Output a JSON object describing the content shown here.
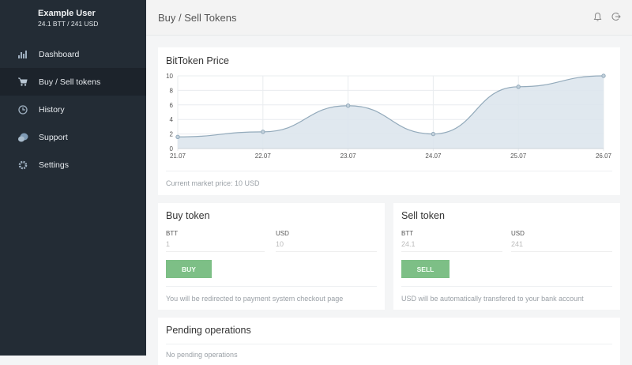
{
  "user": {
    "name": "Example User",
    "balance": "24.1 BTT / 241 USD"
  },
  "sidebar": {
    "items": [
      {
        "label": "Dashboard",
        "icon": "bar-chart-icon"
      },
      {
        "label": "Buy / Sell tokens",
        "icon": "cart-icon",
        "active": true
      },
      {
        "label": "History",
        "icon": "clock-icon"
      },
      {
        "label": "Support",
        "icon": "chat-icon"
      },
      {
        "label": "Settings",
        "icon": "gear-icon"
      }
    ]
  },
  "header": {
    "title": "Buy / Sell Tokens",
    "icons": [
      "bell-icon",
      "logout-icon"
    ]
  },
  "price_card": {
    "title": "BitToken Price",
    "footer": "Current market price: 10 USD"
  },
  "buy": {
    "title": "Buy token",
    "btt_label": "BTT",
    "usd_label": "USD",
    "btt_value": "1",
    "usd_value": "10",
    "button": "BUY",
    "note": "You will be redirected to payment system checkout page"
  },
  "sell": {
    "title": "Sell token",
    "btt_label": "BTT",
    "usd_label": "USD",
    "btt_value": "24.1",
    "usd_value": "241",
    "button": "SELL",
    "note": "USD will be automatically transfered to your bank account"
  },
  "pending": {
    "title": "Pending operations",
    "empty": "No pending operations"
  },
  "colors": {
    "sidebar": "#232c35",
    "accent_green": "#7dbf86",
    "chart_fill": "#dde6ed",
    "chart_line": "#93aabb"
  },
  "chart_data": {
    "type": "area",
    "title": "BitToken Price",
    "categories": [
      "21.07",
      "22.07",
      "23.07",
      "24.07",
      "25.07",
      "26.07"
    ],
    "values": [
      1.6,
      2.3,
      5.9,
      2.0,
      8.5,
      10
    ],
    "yticks": [
      0,
      2,
      4,
      6,
      8,
      10
    ],
    "ylim": [
      0,
      10
    ],
    "xlabel": "",
    "ylabel": "",
    "grid": true,
    "legend": false
  }
}
